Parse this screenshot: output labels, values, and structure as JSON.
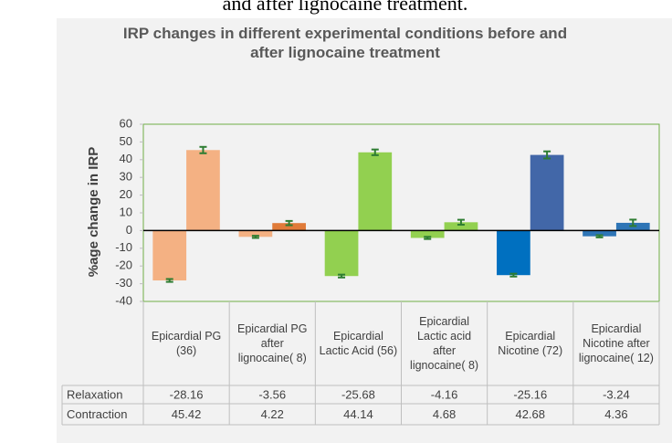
{
  "caption": "and after lignocaine treatment.",
  "chart_data": {
    "type": "bar",
    "title": "IRP changes in different experimental conditions before and after lignocaine treatment",
    "y_label": "%age change in IRP",
    "categories": [
      "Epicardial PG (36)",
      "Epicardial PG after lignocaine( 8)",
      "Epicardial Lactic Acid (56)",
      "Epicardial Lactic acid after lignocaine( 8)",
      "Epicardial Nicotine (72)",
      "Epicardial Nicotine after lignocaine( 12)"
    ],
    "series": [
      {
        "name": "Relaxation",
        "colors": [
          "#f4b183",
          "#f4b183",
          "#92d050",
          "#92d050",
          "#0070c0",
          "#2e75b6"
        ],
        "values": [
          -28.16,
          -3.56,
          -25.68,
          -4.16,
          -25.16,
          -3.24
        ],
        "errors": [
          0.8,
          0.6,
          0.8,
          0.6,
          0.8,
          0.6
        ]
      },
      {
        "name": "Contraction",
        "colors": [
          "#f4b183",
          "#e07b39",
          "#92d050",
          "#92d050",
          "#4267a8",
          "#2e75b6"
        ],
        "values": [
          45.42,
          4.22,
          44.14,
          4.68,
          42.68,
          4.36
        ],
        "errors": [
          1.8,
          1.2,
          1.6,
          1.4,
          2.0,
          1.8
        ]
      }
    ],
    "ylim": [
      -40,
      60
    ],
    "yticks": [
      -40,
      -30,
      -20,
      -10,
      0,
      10,
      20,
      30,
      40,
      50,
      60
    ],
    "error_color": "#2e7d32"
  }
}
